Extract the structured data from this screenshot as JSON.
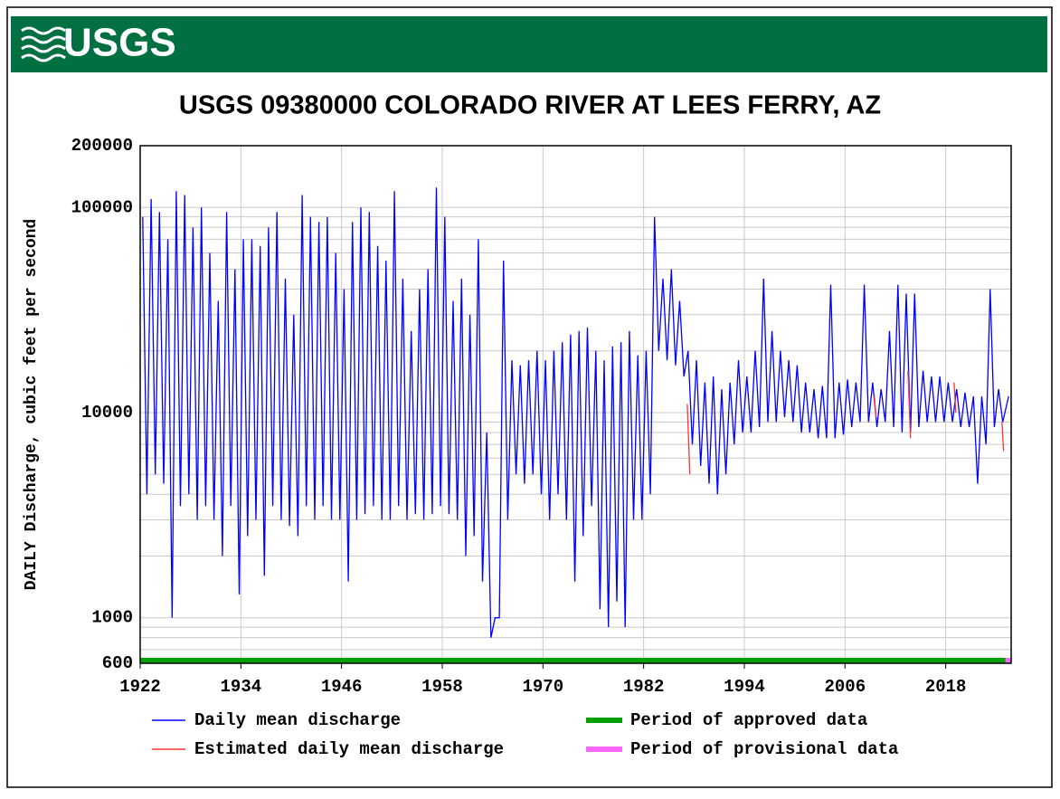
{
  "logo": "USGS",
  "chart_data": {
    "type": "line",
    "title": "USGS 09380000 COLORADO RIVER AT LEES FERRY, AZ",
    "y_label": "DAILY Discharge, cubic feet per second",
    "log_scale": true,
    "grid": true,
    "xlim": [
      1922,
      2025.8
    ],
    "xticks": [
      1922,
      1934,
      1946,
      1958,
      1970,
      1982,
      1994,
      2006,
      2018
    ],
    "ylim": [
      600,
      200000
    ],
    "yticks": [
      600,
      1000,
      10000,
      100000,
      200000
    ],
    "y_minor_ticks": [
      700,
      800,
      900,
      2000,
      3000,
      4000,
      5000,
      6000,
      7000,
      8000,
      9000,
      20000,
      30000,
      40000,
      50000,
      60000,
      70000,
      80000,
      90000
    ],
    "series": [
      {
        "name": "Daily mean discharge",
        "color": "#0000ff",
        "x": [
          1922.3,
          1922.8,
          1923.3,
          1923.8,
          1924.3,
          1924.8,
          1925.3,
          1925.8,
          1926.3,
          1926.8,
          1927.3,
          1927.8,
          1928.3,
          1928.8,
          1929.3,
          1929.8,
          1930.3,
          1930.8,
          1931.3,
          1931.8,
          1932.3,
          1932.8,
          1933.3,
          1933.8,
          1934.3,
          1934.8,
          1935.3,
          1935.8,
          1936.3,
          1936.8,
          1937.3,
          1937.8,
          1938.3,
          1938.8,
          1939.3,
          1939.8,
          1940.3,
          1940.8,
          1941.3,
          1941.8,
          1942.3,
          1942.8,
          1943.3,
          1943.8,
          1944.3,
          1944.8,
          1945.3,
          1945.8,
          1946.3,
          1946.8,
          1947.3,
          1947.8,
          1948.3,
          1948.8,
          1949.3,
          1949.8,
          1950.3,
          1950.8,
          1951.3,
          1951.8,
          1952.3,
          1952.8,
          1953.3,
          1953.8,
          1954.3,
          1954.8,
          1955.3,
          1955.8,
          1956.3,
          1956.8,
          1957.3,
          1957.8,
          1958.3,
          1958.8,
          1959.3,
          1959.8,
          1960.3,
          1960.8,
          1961.3,
          1961.8,
          1962.3,
          1962.8,
          1963.3,
          1963.8,
          1964.3,
          1964.8,
          1965.3,
          1965.8,
          1966.3,
          1966.8,
          1967.3,
          1967.8,
          1968.3,
          1968.8,
          1969.3,
          1969.8,
          1970.3,
          1970.8,
          1971.3,
          1971.8,
          1972.3,
          1972.8,
          1973.3,
          1973.8,
          1974.3,
          1974.8,
          1975.3,
          1975.8,
          1976.3,
          1976.8,
          1977.3,
          1977.8,
          1978.3,
          1978.8,
          1979.3,
          1979.8,
          1980.3,
          1980.8,
          1981.3,
          1981.8,
          1982.3,
          1982.8,
          1983.3,
          1983.8,
          1984.3,
          1984.8,
          1985.3,
          1985.8,
          1986.3,
          1986.8,
          1987.3,
          1987.8,
          1988.3,
          1988.8,
          1989.3,
          1989.8,
          1990.3,
          1990.8,
          1991.3,
          1991.8,
          1992.3,
          1992.8,
          1993.3,
          1993.8,
          1994.3,
          1994.8,
          1995.3,
          1995.8,
          1996.3,
          1996.8,
          1997.3,
          1997.8,
          1998.3,
          1998.8,
          1999.3,
          1999.8,
          2000.3,
          2000.8,
          2001.3,
          2001.8,
          2002.3,
          2002.8,
          2003.3,
          2003.8,
          2004.3,
          2004.8,
          2005.3,
          2005.8,
          2006.3,
          2006.8,
          2007.3,
          2007.8,
          2008.3,
          2008.8,
          2009.3,
          2009.8,
          2010.3,
          2010.8,
          2011.3,
          2011.8,
          2012.3,
          2012.8,
          2013.3,
          2013.8,
          2014.3,
          2014.8,
          2015.3,
          2015.8,
          2016.3,
          2016.8,
          2017.3,
          2017.8,
          2018.3,
          2018.8,
          2019.3,
          2019.8,
          2020.3,
          2020.8,
          2021.3,
          2021.8,
          2022.3,
          2022.8,
          2023.3,
          2023.8,
          2024.3,
          2024.8,
          2025.5
        ],
        "values": [
          90000,
          4000,
          110000,
          5000,
          95000,
          4500,
          70000,
          1000,
          120000,
          3500,
          115000,
          4000,
          80000,
          3000,
          100000,
          3500,
          60000,
          3000,
          35000,
          2000,
          95000,
          3500,
          50000,
          1300,
          70000,
          2500,
          70000,
          3000,
          65000,
          1600,
          80000,
          3500,
          95000,
          3000,
          45000,
          2800,
          30000,
          2500,
          115000,
          3500,
          90000,
          3000,
          85000,
          3500,
          90000,
          3000,
          60000,
          3000,
          40000,
          1500,
          85000,
          3000,
          100000,
          3200,
          95000,
          3500,
          65000,
          3000,
          55000,
          3000,
          120000,
          3500,
          45000,
          3000,
          25000,
          3200,
          40000,
          3000,
          50000,
          3200,
          125000,
          3500,
          90000,
          3200,
          35000,
          3000,
          45000,
          2000,
          30000,
          2500,
          70000,
          1500,
          8000,
          800,
          1000,
          1000,
          55000,
          3000,
          18000,
          5000,
          17000,
          4500,
          18000,
          5000,
          20000,
          4000,
          18000,
          3000,
          20000,
          4000,
          22000,
          3000,
          24000,
          1500,
          25000,
          2500,
          26000,
          3500,
          20000,
          1100,
          18000,
          900,
          21000,
          1200,
          22000,
          900,
          25000,
          3000,
          19000,
          3000,
          20000,
          4000,
          90000,
          20000,
          45000,
          18000,
          50000,
          17000,
          35000,
          15000,
          20000,
          7000,
          18000,
          5500,
          14000,
          4500,
          15000,
          4000,
          13000,
          5000,
          14000,
          7000,
          18000,
          8000,
          15000,
          8000,
          20000,
          8500,
          45000,
          9000,
          25000,
          9000,
          20000,
          9500,
          18000,
          9000,
          17000,
          8000,
          14000,
          8000,
          13000,
          7500,
          13500,
          7500,
          42000,
          7500,
          14000,
          7800,
          14500,
          8500,
          14000,
          9000,
          42000,
          9000,
          14000,
          8500,
          13000,
          9000,
          25000,
          8500,
          42000,
          8000,
          38000,
          8000,
          38000,
          8500,
          16000,
          9000,
          15000,
          9000,
          15000,
          9000,
          14000,
          9000,
          13000,
          8500,
          12500,
          8500,
          12000,
          4500,
          12000,
          7000,
          40000,
          8500,
          13000,
          9000,
          12000
        ]
      },
      {
        "name": "Estimated daily mean discharge",
        "color": "#ff3333",
        "x": [
          1987.2,
          1987.5,
          1998,
          2009.5,
          2009.7,
          2011,
          2013.5,
          2013.8,
          2016,
          2019.0,
          2019.2,
          2022,
          2024.7,
          2024.9
        ],
        "values": [
          11000,
          5000,
          null,
          12000,
          9500,
          null,
          16000,
          7500,
          null,
          14000,
          10000,
          null,
          9000,
          6500
        ]
      }
    ],
    "periods": [
      {
        "name": "Period of approved data",
        "color": "#00a000",
        "range": [
          1922,
          2025.1
        ]
      },
      {
        "name": "Period of provisional data",
        "color": "#ff66ff",
        "range": [
          2025.1,
          2025.8
        ]
      }
    ]
  }
}
